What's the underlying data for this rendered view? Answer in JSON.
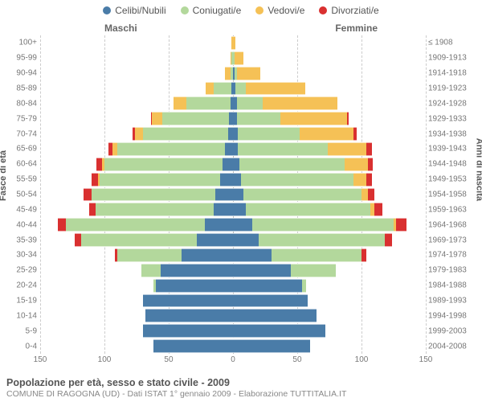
{
  "chart": {
    "type": "population-pyramid",
    "legend": [
      {
        "label": "Celibi/Nubili",
        "color": "#4a7ca8"
      },
      {
        "label": "Coniugati/e",
        "color": "#b3d89c"
      },
      {
        "label": "Vedovi/e",
        "color": "#f5c156"
      },
      {
        "label": "Divorziati/e",
        "color": "#d93030"
      }
    ],
    "labels": {
      "male": "Maschi",
      "female": "Femmine",
      "y_left": "Fasce di età",
      "y_right": "Anni di nascita"
    },
    "xmax": 150,
    "x_ticks": [
      150,
      100,
      50,
      0,
      50,
      100,
      150
    ],
    "grid_color": "#cccccc",
    "background": "#ffffff",
    "age_bands": [
      {
        "age": "0-4",
        "birth": "2004-2008",
        "m": [
          62,
          0,
          0,
          0
        ],
        "f": [
          60,
          0,
          0,
          0
        ]
      },
      {
        "age": "5-9",
        "birth": "1999-2003",
        "m": [
          70,
          0,
          0,
          0
        ],
        "f": [
          72,
          0,
          0,
          0
        ]
      },
      {
        "age": "10-14",
        "birth": "1994-1998",
        "m": [
          68,
          0,
          0,
          0
        ],
        "f": [
          65,
          0,
          0,
          0
        ]
      },
      {
        "age": "15-19",
        "birth": "1989-1993",
        "m": [
          70,
          0,
          0,
          0
        ],
        "f": [
          58,
          0,
          0,
          0
        ]
      },
      {
        "age": "20-24",
        "birth": "1984-1988",
        "m": [
          60,
          2,
          0,
          0
        ],
        "f": [
          54,
          3,
          0,
          0
        ]
      },
      {
        "age": "25-29",
        "birth": "1979-1983",
        "m": [
          56,
          15,
          0,
          0
        ],
        "f": [
          45,
          35,
          0,
          0
        ]
      },
      {
        "age": "30-34",
        "birth": "1974-1978",
        "m": [
          40,
          50,
          0,
          2
        ],
        "f": [
          30,
          70,
          0,
          4
        ]
      },
      {
        "age": "35-39",
        "birth": "1969-1973",
        "m": [
          28,
          90,
          0,
          5
        ],
        "f": [
          20,
          98,
          0,
          6
        ]
      },
      {
        "age": "40-44",
        "birth": "1964-1968",
        "m": [
          22,
          108,
          0,
          6
        ],
        "f": [
          15,
          110,
          2,
          8
        ]
      },
      {
        "age": "45-49",
        "birth": "1959-1963",
        "m": [
          15,
          92,
          0,
          5
        ],
        "f": [
          10,
          97,
          3,
          6
        ]
      },
      {
        "age": "50-54",
        "birth": "1954-1958",
        "m": [
          14,
          96,
          0,
          6
        ],
        "f": [
          8,
          92,
          5,
          5
        ]
      },
      {
        "age": "55-59",
        "birth": "1949-1953",
        "m": [
          10,
          94,
          1,
          5
        ],
        "f": [
          6,
          88,
          10,
          4
        ]
      },
      {
        "age": "60-64",
        "birth": "1944-1948",
        "m": [
          8,
          92,
          2,
          4
        ],
        "f": [
          5,
          82,
          18,
          4
        ]
      },
      {
        "age": "65-69",
        "birth": "1939-1943",
        "m": [
          6,
          84,
          4,
          3
        ],
        "f": [
          4,
          70,
          30,
          4
        ]
      },
      {
        "age": "70-74",
        "birth": "1934-1938",
        "m": [
          4,
          66,
          6,
          2
        ],
        "f": [
          4,
          48,
          42,
          2
        ]
      },
      {
        "age": "75-79",
        "birth": "1929-1933",
        "m": [
          3,
          52,
          8,
          1
        ],
        "f": [
          3,
          34,
          52,
          1
        ]
      },
      {
        "age": "80-84",
        "birth": "1924-1928",
        "m": [
          2,
          34,
          10,
          0
        ],
        "f": [
          3,
          20,
          58,
          0
        ]
      },
      {
        "age": "85-89",
        "birth": "1919-1923",
        "m": [
          1,
          14,
          6,
          0
        ],
        "f": [
          2,
          8,
          46,
          0
        ]
      },
      {
        "age": "90-94",
        "birth": "1914-1918",
        "m": [
          0,
          2,
          4,
          0
        ],
        "f": [
          1,
          2,
          18,
          0
        ]
      },
      {
        "age": "95-99",
        "birth": "1909-1913",
        "m": [
          0,
          1,
          1,
          0
        ],
        "f": [
          0,
          1,
          7,
          0
        ]
      },
      {
        "age": "100+",
        "birth": "≤ 1908",
        "m": [
          0,
          0,
          1,
          0
        ],
        "f": [
          0,
          0,
          2,
          0
        ]
      }
    ],
    "footer": {
      "title": "Popolazione per età, sesso e stato civile - 2009",
      "sub": "COMUNE DI RAGOGNA (UD) - Dati ISTAT 1° gennaio 2009 - Elaborazione TUTTITALIA.IT"
    }
  }
}
